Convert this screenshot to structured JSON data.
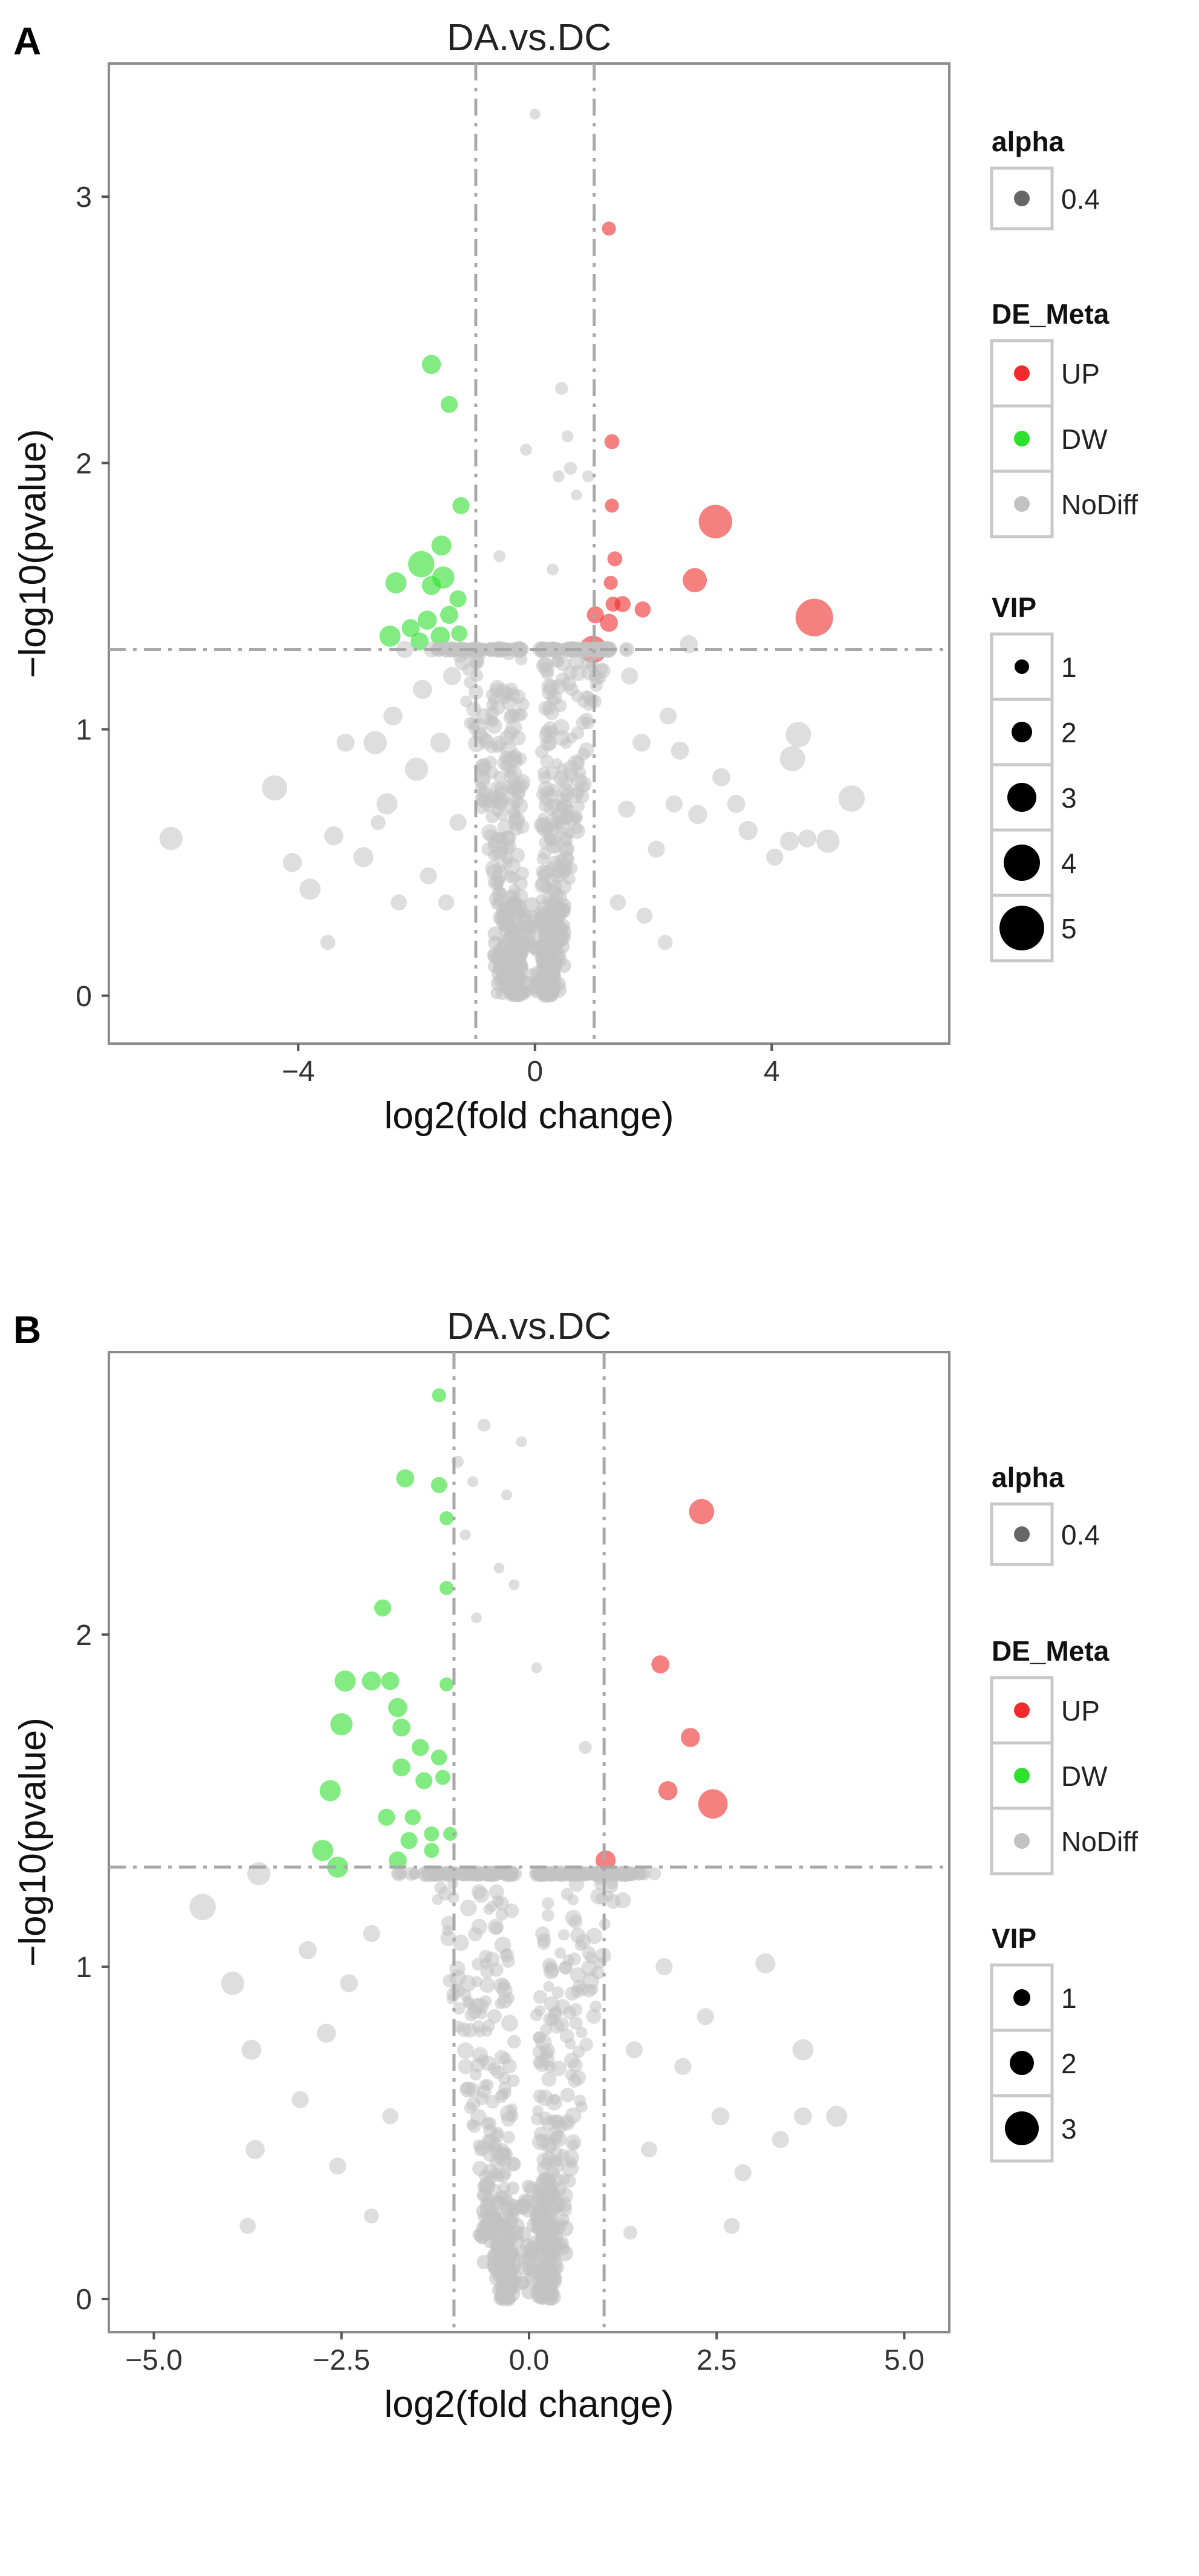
{
  "chart_data": [
    {
      "panel_label": "A",
      "type": "scatter",
      "title": "DA.vs.DC",
      "xlabel": "log2(fold change)",
      "ylabel": "−log10(pvalue)",
      "xlim": [
        -7.2,
        7.0
      ],
      "ylim": [
        -0.18,
        3.5
      ],
      "xticks": [
        -4,
        0,
        4
      ],
      "xtick_labels": [
        "−4",
        "0",
        "4"
      ],
      "yticks": [
        0,
        1,
        2,
        3
      ],
      "ytick_labels": [
        "0",
        "1",
        "2",
        "3"
      ],
      "fc_thresholds": [
        -1,
        1
      ],
      "p_threshold": 1.3,
      "colors": {
        "UP": "#ef2b2b",
        "DW": "#2fe02f",
        "NoDiff": "#c2c2c2"
      },
      "point_alpha": 0.4,
      "legend": {
        "placement": "right",
        "alpha": {
          "title": "alpha",
          "entries": [
            "0.4"
          ]
        },
        "de_meta": {
          "title": "DE_Meta",
          "entries": [
            "UP",
            "DW",
            "NoDiff"
          ]
        },
        "vip": {
          "title": "VIP",
          "entries": [
            "1",
            "2",
            "3",
            "4",
            "5"
          ]
        }
      },
      "series": [
        {
          "name": "UP",
          "points": [
            [
              1.25,
              2.88,
              1.3
            ],
            [
              1.3,
              2.08,
              1.4
            ],
            [
              1.3,
              1.84,
              1.3
            ],
            [
              1.35,
              1.64,
              1.4
            ],
            [
              1.28,
              1.55,
              1.3
            ],
            [
              1.48,
              1.47,
              1.5
            ],
            [
              1.32,
              1.47,
              1.4
            ],
            [
              1.82,
              1.45,
              1.5
            ],
            [
              1.02,
              1.43,
              1.6
            ],
            [
              1.25,
              1.4,
              1.7
            ],
            [
              0.98,
              1.3,
              2.6
            ],
            [
              2.7,
              1.56,
              2.3
            ],
            [
              3.05,
              1.78,
              3.2
            ],
            [
              4.72,
              1.42,
              3.6
            ]
          ]
        },
        {
          "name": "DW",
          "points": [
            [
              -1.75,
              2.37,
              1.8
            ],
            [
              -1.45,
              2.22,
              1.6
            ],
            [
              -1.25,
              1.84,
              1.6
            ],
            [
              -1.58,
              1.69,
              1.9
            ],
            [
              -1.92,
              1.62,
              2.5
            ],
            [
              -1.55,
              1.57,
              2.1
            ],
            [
              -2.35,
              1.55,
              2.0
            ],
            [
              -1.75,
              1.54,
              1.8
            ],
            [
              -1.3,
              1.49,
              1.6
            ],
            [
              -1.45,
              1.43,
              1.7
            ],
            [
              -1.82,
              1.41,
              1.8
            ],
            [
              -2.1,
              1.38,
              1.7
            ],
            [
              -1.6,
              1.35,
              1.8
            ],
            [
              -2.45,
              1.35,
              2.0
            ],
            [
              -1.28,
              1.36,
              1.5
            ],
            [
              -1.95,
              1.33,
              1.7
            ]
          ]
        },
        {
          "name": "NoDiff",
          "points": [
            [
              0.0,
              3.31,
              1.0
            ],
            [
              0.45,
              2.28,
              1.2
            ],
            [
              -0.15,
              2.05,
              1.1
            ],
            [
              0.55,
              2.1,
              1.1
            ],
            [
              0.6,
              1.98,
              1.2
            ],
            [
              0.9,
              1.95,
              1.1
            ],
            [
              0.7,
              1.88,
              1.0
            ],
            [
              0.4,
              1.95,
              1.1
            ],
            [
              -0.6,
              1.65,
              1.1
            ],
            [
              0.3,
              1.6,
              1.1
            ],
            [
              -6.15,
              0.59,
              2.2
            ],
            [
              -4.4,
              0.78,
              2.4
            ],
            [
              -4.1,
              0.5,
              1.8
            ],
            [
              -3.8,
              0.4,
              2.0
            ],
            [
              -3.4,
              0.6,
              1.8
            ],
            [
              -2.9,
              0.52,
              1.9
            ],
            [
              -2.7,
              0.95,
              2.2
            ],
            [
              -2.5,
              0.72,
              2.0
            ],
            [
              -2.4,
              1.05,
              1.8
            ],
            [
              -2.2,
              1.3,
              1.6
            ],
            [
              -2.0,
              0.85,
              2.2
            ],
            [
              -1.9,
              1.15,
              1.8
            ],
            [
              -3.2,
              0.95,
              1.7
            ],
            [
              -3.5,
              0.2,
              1.4
            ],
            [
              -2.3,
              0.35,
              1.5
            ],
            [
              -2.65,
              0.65,
              1.4
            ],
            [
              -1.8,
              0.45,
              1.6
            ],
            [
              5.35,
              0.74,
              2.5
            ],
            [
              4.45,
              0.98,
              2.4
            ],
            [
              4.35,
              0.89,
              2.4
            ],
            [
              4.6,
              0.59,
              1.7
            ],
            [
              4.3,
              0.58,
              1.8
            ],
            [
              4.95,
              0.58,
              2.2
            ],
            [
              3.6,
              0.62,
              1.8
            ],
            [
              4.05,
              0.52,
              1.6
            ],
            [
              3.4,
              0.72,
              1.7
            ],
            [
              3.15,
              0.82,
              1.7
            ],
            [
              2.75,
              0.68,
              1.8
            ],
            [
              2.45,
              0.92,
              1.7
            ],
            [
              2.25,
              1.05,
              1.6
            ],
            [
              2.6,
              1.32,
              1.7
            ],
            [
              2.35,
              0.72,
              1.6
            ],
            [
              2.05,
              0.55,
              1.6
            ],
            [
              2.2,
              0.2,
              1.4
            ],
            [
              1.6,
              1.2,
              1.6
            ],
            [
              1.8,
              0.95,
              1.7
            ],
            [
              1.55,
              0.7,
              1.6
            ],
            [
              1.4,
              0.35,
              1.5
            ],
            [
              1.85,
              0.3,
              1.5
            ],
            [
              1.15,
              1.22,
              1.4
            ],
            [
              -1.4,
              1.2,
              1.7
            ],
            [
              -1.6,
              0.95,
              1.9
            ],
            [
              -1.3,
              0.65,
              1.6
            ],
            [
              -1.5,
              0.35,
              1.5
            ]
          ]
        }
      ]
    },
    {
      "panel_label": "B",
      "type": "scatter",
      "title": "DA.vs.DC",
      "xlabel": "log2(fold change)",
      "ylabel": "−log10(pvalue)",
      "xlim": [
        -5.6,
        5.6
      ],
      "ylim": [
        -0.1,
        2.85
      ],
      "xticks": [
        -5.0,
        -2.5,
        0.0,
        2.5,
        5.0
      ],
      "xtick_labels": [
        "−5.0",
        "−2.5",
        "0.0",
        "2.5",
        "5.0"
      ],
      "yticks": [
        0,
        1,
        2
      ],
      "ytick_labels": [
        "0",
        "1",
        "2"
      ],
      "fc_thresholds": [
        -1,
        1
      ],
      "p_threshold": 1.3,
      "colors": {
        "UP": "#ef2b2b",
        "DW": "#2fe02f",
        "NoDiff": "#c2c2c2"
      },
      "point_alpha": 0.4,
      "legend": {
        "placement": "right",
        "alpha": {
          "title": "alpha",
          "entries": [
            "0.4"
          ]
        },
        "de_meta": {
          "title": "DE_Meta",
          "entries": [
            "UP",
            "DW",
            "NoDiff"
          ]
        },
        "vip": {
          "title": "VIP",
          "entries": [
            "1",
            "2",
            "3"
          ]
        }
      },
      "series": [
        {
          "name": "UP",
          "points": [
            [
              2.3,
              2.37,
              2.4
            ],
            [
              1.75,
              1.91,
              1.7
            ],
            [
              2.15,
              1.69,
              1.8
            ],
            [
              1.85,
              1.53,
              1.8
            ],
            [
              1.02,
              1.32,
              1.9
            ],
            [
              2.45,
              1.49,
              2.8
            ]
          ]
        },
        {
          "name": "DW",
          "points": [
            [
              -1.2,
              2.72,
              1.3
            ],
            [
              -1.65,
              2.47,
              1.7
            ],
            [
              -1.2,
              2.45,
              1.5
            ],
            [
              -1.1,
              2.35,
              1.3
            ],
            [
              -1.1,
              2.14,
              1.3
            ],
            [
              -1.95,
              2.08,
              1.6
            ],
            [
              -2.45,
              1.86,
              2.0
            ],
            [
              -2.1,
              1.86,
              1.8
            ],
            [
              -1.85,
              1.86,
              1.7
            ],
            [
              -1.75,
              1.78,
              1.8
            ],
            [
              -1.1,
              1.85,
              1.3
            ],
            [
              -2.5,
              1.73,
              2.1
            ],
            [
              -1.7,
              1.72,
              1.7
            ],
            [
              -1.45,
              1.66,
              1.6
            ],
            [
              -1.2,
              1.63,
              1.5
            ],
            [
              -1.15,
              1.57,
              1.4
            ],
            [
              -1.7,
              1.6,
              1.7
            ],
            [
              -1.4,
              1.56,
              1.6
            ],
            [
              -2.65,
              1.53,
              2.0
            ],
            [
              -1.9,
              1.45,
              1.6
            ],
            [
              -1.55,
              1.45,
              1.5
            ],
            [
              -1.3,
              1.4,
              1.4
            ],
            [
              -1.05,
              1.4,
              1.3
            ],
            [
              -1.6,
              1.38,
              1.6
            ],
            [
              -2.75,
              1.35,
              2.0
            ],
            [
              -2.55,
              1.3,
              2.0
            ],
            [
              -1.75,
              1.32,
              1.7
            ],
            [
              -1.3,
              1.35,
              1.4
            ]
          ]
        },
        {
          "name": "NoDiff",
          "points": [
            [
              -0.6,
              2.63,
              1.2
            ],
            [
              -0.1,
              2.58,
              1.0
            ],
            [
              -0.95,
              2.52,
              1.1
            ],
            [
              -0.75,
              2.46,
              1.0
            ],
            [
              -0.3,
              2.42,
              1.0
            ],
            [
              -0.85,
              2.3,
              1.0
            ],
            [
              -0.4,
              2.2,
              1.0
            ],
            [
              -0.2,
              2.15,
              1.0
            ],
            [
              -0.7,
              2.05,
              1.0
            ],
            [
              0.1,
              1.9,
              1.0
            ],
            [
              -4.35,
              1.18,
              2.5
            ],
            [
              -3.6,
              1.28,
              2.2
            ],
            [
              -3.95,
              0.95,
              2.2
            ],
            [
              -3.7,
              0.75,
              1.9
            ],
            [
              -3.65,
              0.45,
              1.8
            ],
            [
              -3.05,
              0.6,
              1.6
            ],
            [
              -3.75,
              0.22,
              1.5
            ],
            [
              -2.95,
              1.05,
              1.7
            ],
            [
              -2.7,
              0.8,
              1.8
            ],
            [
              -2.4,
              0.95,
              1.7
            ],
            [
              -2.55,
              0.4,
              1.6
            ],
            [
              -2.1,
              1.1,
              1.6
            ],
            [
              -1.85,
              0.55,
              1.5
            ],
            [
              -2.1,
              0.25,
              1.4
            ],
            [
              4.1,
              0.55,
              2.0
            ],
            [
              3.65,
              0.75,
              2.0
            ],
            [
              3.65,
              0.55,
              1.7
            ],
            [
              3.35,
              0.48,
              1.6
            ],
            [
              3.15,
              1.01,
              1.9
            ],
            [
              2.55,
              0.55,
              1.7
            ],
            [
              2.85,
              0.38,
              1.6
            ],
            [
              2.35,
              0.85,
              1.6
            ],
            [
              2.7,
              0.22,
              1.5
            ],
            [
              2.05,
              0.7,
              1.6
            ],
            [
              1.8,
              1.0,
              1.6
            ],
            [
              1.6,
              0.45,
              1.5
            ],
            [
              1.4,
              0.75,
              1.6
            ],
            [
              1.25,
              1.2,
              1.5
            ],
            [
              0.75,
              1.66,
              1.2
            ],
            [
              1.35,
              0.2,
              1.3
            ]
          ]
        }
      ]
    }
  ]
}
